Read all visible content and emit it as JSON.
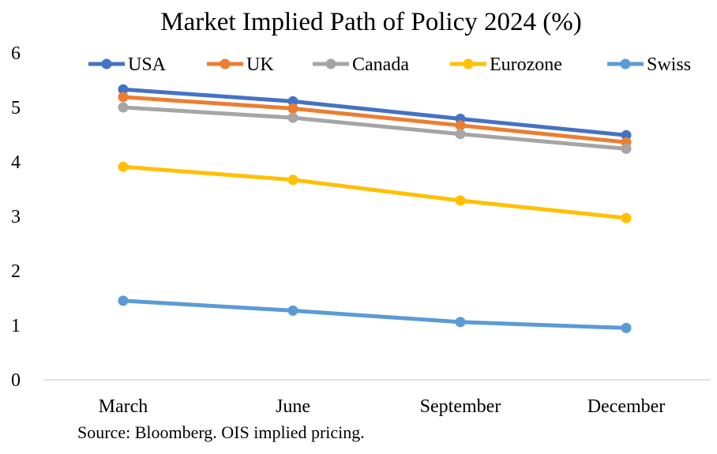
{
  "chart_data": {
    "type": "line",
    "title": "Market Implied Path of Policy 2024 (%)",
    "categories": [
      "March",
      "June",
      "September",
      "December"
    ],
    "ylim": [
      0,
      6
    ],
    "yticks": [
      "0",
      "1",
      "2",
      "3",
      "4",
      "5",
      "6"
    ],
    "grid": false,
    "legend_position": "top",
    "series": [
      {
        "name": "USA",
        "color": "#4472C4",
        "values": [
          5.33,
          5.11,
          4.79,
          4.49
        ]
      },
      {
        "name": "UK",
        "color": "#ED7D31",
        "values": [
          5.19,
          4.98,
          4.67,
          4.36
        ]
      },
      {
        "name": "Canada",
        "color": "#A5A5A5",
        "values": [
          5.0,
          4.81,
          4.51,
          4.24
        ]
      },
      {
        "name": "Eurozone",
        "color": "#FFC000",
        "values": [
          3.91,
          3.67,
          3.29,
          2.97
        ]
      },
      {
        "name": "Swiss",
        "color": "#5B9BD5",
        "values": [
          1.45,
          1.27,
          1.06,
          0.95
        ]
      }
    ],
    "note": "Source: Bloomberg. OIS implied pricing."
  }
}
